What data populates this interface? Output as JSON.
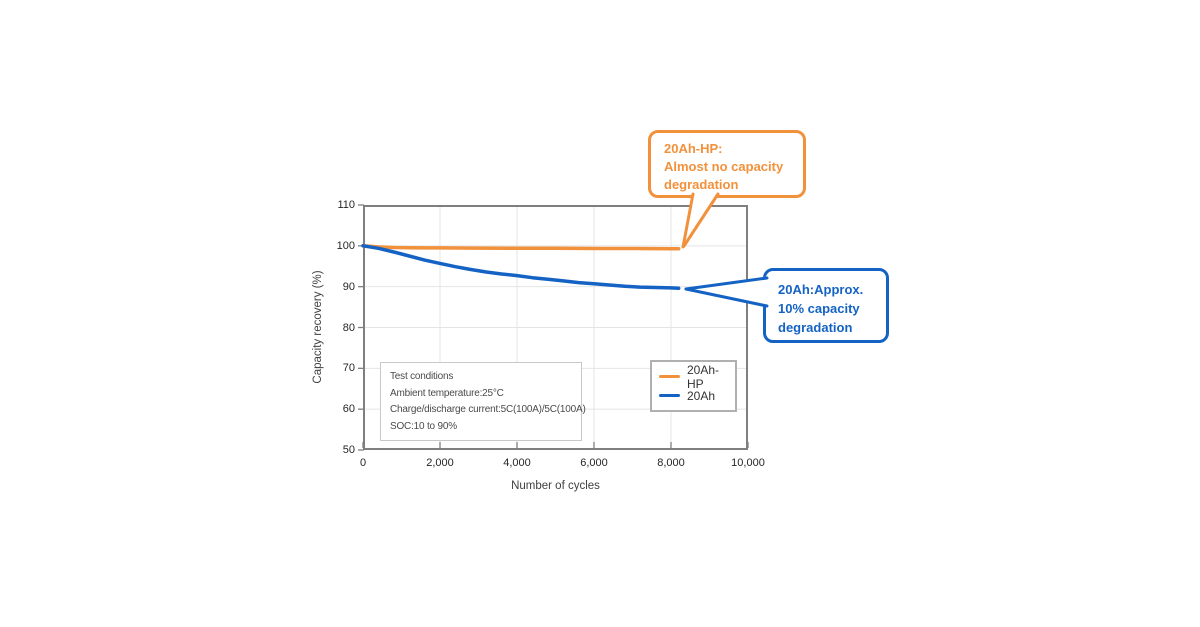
{
  "chart_data": {
    "type": "line",
    "title": "",
    "xlabel": "Number of cycles",
    "ylabel": "Capacity recovery (%)",
    "xlim": [
      0,
      10000
    ],
    "ylim": [
      50,
      110
    ],
    "xticks": [
      0,
      2000,
      4000,
      6000,
      8000,
      10000
    ],
    "xtick_labels": [
      "0",
      "2,000",
      "4,000",
      "6,000",
      "8,000",
      "10,000"
    ],
    "yticks": [
      50,
      60,
      70,
      80,
      90,
      100,
      110
    ],
    "ytick_labels": [
      "50",
      "60",
      "70",
      "80",
      "90",
      "100",
      "110"
    ],
    "grid": true,
    "legend_position": "inside lower-right",
    "series": [
      {
        "name": "20Ah-HP",
        "color": "#F2913C",
        "x": [
          0,
          400,
          800,
          1200,
          1600,
          2000,
          3000,
          4000,
          5000,
          6000,
          7000,
          8000,
          8200
        ],
        "y": [
          100,
          99.75,
          99.6,
          99.55,
          99.5,
          99.5,
          99.45,
          99.4,
          99.4,
          99.35,
          99.35,
          99.3,
          99.3
        ]
      },
      {
        "name": "20Ah",
        "color": "#1463C4",
        "x": [
          0,
          400,
          800,
          1200,
          1600,
          2000,
          2400,
          2800,
          3200,
          3600,
          4000,
          4400,
          4800,
          5200,
          5600,
          6000,
          6400,
          6800,
          7200,
          7600,
          8000,
          8200
        ],
        "y": [
          100,
          99.4,
          98.5,
          97.5,
          96.5,
          95.7,
          94.9,
          94.2,
          93.6,
          93.1,
          92.7,
          92.2,
          91.8,
          91.4,
          91.0,
          90.7,
          90.4,
          90.1,
          89.9,
          89.8,
          89.7,
          89.6
        ]
      }
    ]
  },
  "annotations": {
    "hp_callout": {
      "color": "#F2913C",
      "lines": [
        "20Ah-HP:",
        "Almost no capacity",
        "degradation"
      ]
    },
    "std_callout": {
      "color": "#1463C4",
      "lines": [
        "20Ah:Approx.",
        "10% capacity",
        "degradation"
      ]
    },
    "test_conditions": {
      "title": "Test conditions",
      "lines": [
        "Ambient temperature:25°C",
        "Charge/discharge current:5C(100A)/5C(100A)",
        "SOC:10 to 90%"
      ]
    }
  },
  "style_colors": {
    "plot_border": "#7F7F7F",
    "grid": "#E4E4E4",
    "tick_text": "#262626",
    "axis_title_text": "#404040",
    "note_text": "#4A4A4A"
  }
}
